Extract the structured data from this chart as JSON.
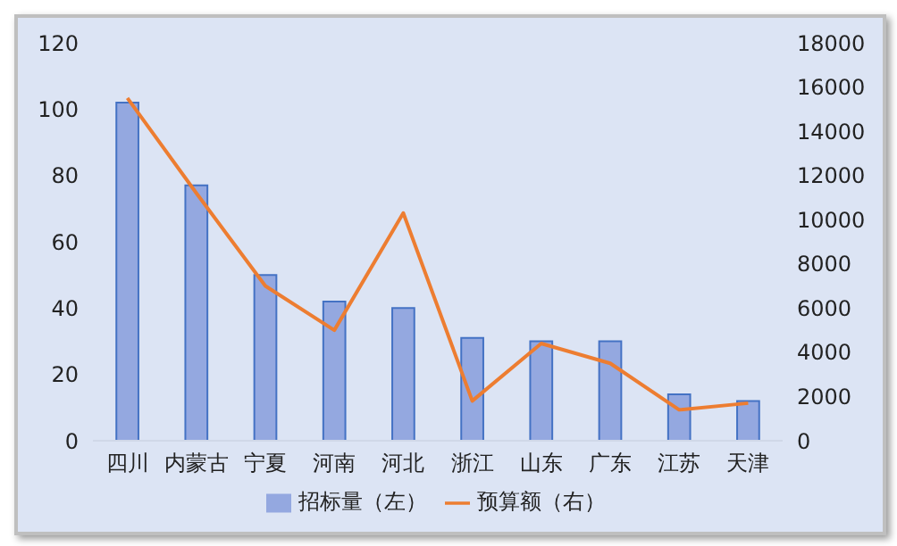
{
  "chart_data": {
    "type": "bar",
    "categories": [
      "四川",
      "内蒙古",
      "宁夏",
      "河南",
      "河北",
      "浙江",
      "山东",
      "广东",
      "江苏",
      "天津"
    ],
    "series": [
      {
        "name": "招标量（左）",
        "color": "#94a8e0",
        "values": [
          102,
          77,
          50,
          42,
          40,
          31,
          30,
          30,
          14,
          12
        ]
      },
      {
        "name": "预算额（右）",
        "type": "line",
        "axis": "y2",
        "color": "#ed7d31",
        "values": [
          15500,
          11200,
          7000,
          5000,
          10300,
          1800,
          4400,
          3500,
          1400,
          1700
        ]
      }
    ],
    "ylim": [
      0,
      120
    ],
    "yticks": [
      0,
      20,
      40,
      60,
      80,
      100,
      120
    ],
    "y2lim": [
      0,
      18000
    ],
    "y2ticks": [
      0,
      2000,
      4000,
      6000,
      8000,
      10000,
      12000,
      14000,
      16000,
      18000
    ],
    "legend": "bottom",
    "grid": false,
    "marker": "none"
  }
}
